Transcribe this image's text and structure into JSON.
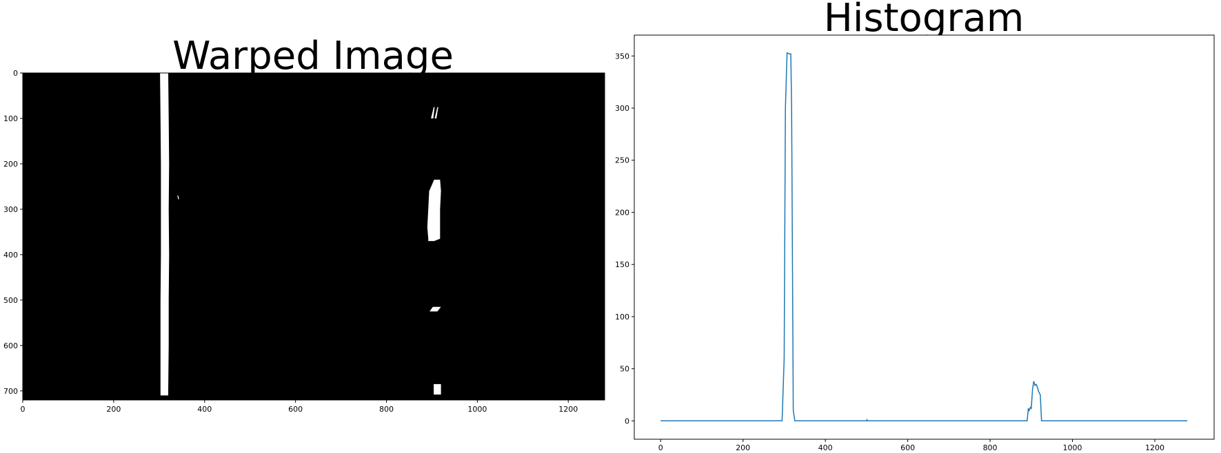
{
  "chart_data": [
    {
      "type": "image",
      "title": "Warped Image",
      "xlim": [
        0,
        1280
      ],
      "ylim": [
        720,
        0
      ],
      "xticks": [
        0,
        200,
        400,
        600,
        800,
        1000,
        1200
      ],
      "yticks": [
        0,
        100,
        200,
        300,
        400,
        500,
        600,
        700
      ],
      "background_color": "#000000",
      "foreground_color": "#ffffff",
      "lane_segments": [
        {
          "x": [
            [
              0,
              302,
              320
            ],
            [
              100,
              303,
              321
            ],
            [
              200,
              304,
              322
            ],
            [
              300,
              304,
              321
            ],
            [
              400,
              304,
              322
            ],
            [
              500,
              303,
              321
            ],
            [
              600,
              303,
              321
            ],
            [
              700,
              303,
              320
            ],
            [
              710,
              303,
              320
            ]
          ]
        },
        {
          "x": [
            [
              75,
              904,
              906
            ],
            [
              100,
              898,
              903
            ]
          ]
        },
        {
          "x": [
            [
              75,
              912,
              914
            ],
            [
              100,
              906,
              910
            ]
          ]
        },
        {
          "x": [
            [
              235,
              905,
              918
            ],
            [
              260,
              894,
              920
            ],
            [
              300,
              892,
              918
            ],
            [
              340,
              890,
              918
            ],
            [
              365,
              892,
              918
            ],
            [
              370,
              892,
              905
            ]
          ]
        },
        {
          "x": [
            [
              515,
              902,
              920
            ],
            [
              525,
              895,
              912
            ]
          ]
        },
        {
          "x": [
            [
              685,
              904,
              920
            ],
            [
              708,
              904,
              920
            ]
          ]
        },
        {
          "x": [
            [
              270,
              340,
              342
            ],
            [
              278,
              342,
              344
            ]
          ]
        }
      ]
    },
    {
      "type": "line",
      "title": "Histogram",
      "xlim": [
        -64,
        1344
      ],
      "ylim": [
        -17.6,
        370
      ],
      "xticks": [
        0,
        200,
        400,
        600,
        800,
        1000,
        1200
      ],
      "yticks": [
        0,
        50,
        100,
        150,
        200,
        250,
        300,
        350
      ],
      "color": "#1f77b4",
      "x": [
        0,
        295,
        300,
        303,
        307,
        312,
        316,
        318,
        322,
        326,
        500,
        501,
        502,
        890,
        893,
        895,
        898,
        900,
        903,
        906,
        909,
        912,
        915,
        918,
        922,
        925,
        930,
        1279
      ],
      "y": [
        0,
        0,
        60,
        300,
        353,
        352,
        352,
        300,
        10,
        0,
        0,
        1,
        0,
        0,
        12,
        10,
        13,
        12,
        30,
        38,
        34,
        35,
        32,
        28,
        25,
        0,
        0,
        0
      ]
    }
  ]
}
